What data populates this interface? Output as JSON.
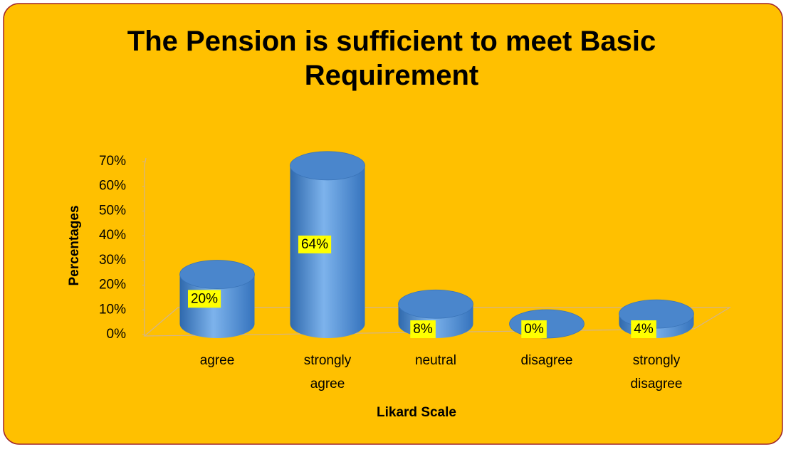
{
  "chart_data": {
    "type": "bar",
    "title": "The Pension is sufficient to meet Basic Requirement",
    "x_label": "Likard Scale",
    "y_label": "Percentages",
    "categories": [
      "agree",
      "strongly agree",
      "neutral",
      "disagree",
      "strongly disagree"
    ],
    "values": [
      20,
      64,
      8,
      0,
      4
    ],
    "value_labels": [
      "20%",
      "64%",
      "8%",
      "0%",
      "4%"
    ],
    "color": "#4a86cc",
    "ylim": [
      0,
      70
    ],
    "yticks": [
      {
        "value": 0,
        "label": "0%"
      },
      {
        "value": 10,
        "label": "10%"
      },
      {
        "value": 20,
        "label": "20%"
      },
      {
        "value": 30,
        "label": "30%"
      },
      {
        "value": 40,
        "label": "40%"
      },
      {
        "value": 50,
        "label": "50%"
      },
      {
        "value": 60,
        "label": "60%"
      },
      {
        "value": 70,
        "label": "70%"
      }
    ],
    "grid": false
  }
}
